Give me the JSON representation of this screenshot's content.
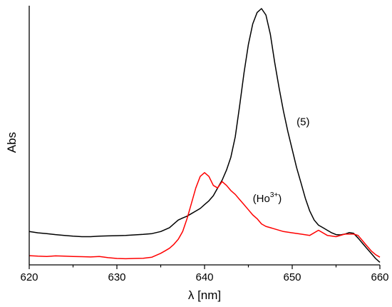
{
  "chart_data": {
    "type": "line",
    "title": "",
    "xlabel": "λ [nm]",
    "ylabel": "Abs",
    "xlim": [
      620,
      660
    ],
    "ylim": [
      0,
      1
    ],
    "xticks": [
      620,
      630,
      640,
      650,
      660
    ],
    "grid": false,
    "legend": "none",
    "annotations": [
      {
        "id": "label-5",
        "text": "(5)",
        "x": 650.5,
        "y": 0.545
      },
      {
        "id": "label-ho",
        "base": "(Ho",
        "sup": "3+",
        "close": ")",
        "x": 645.5,
        "y": 0.245
      }
    ],
    "series": [
      {
        "color": "#000000",
        "x": [
          620,
          621,
          622,
          623,
          624,
          625,
          626,
          627,
          628,
          629,
          630,
          631,
          632,
          633,
          634,
          635,
          636,
          636.5,
          637,
          637.5,
          638,
          638.5,
          639,
          639.5,
          640,
          640.5,
          641,
          641.5,
          642,
          642.5,
          643,
          643.5,
          644,
          644.5,
          645,
          645.5,
          646,
          646.5,
          647,
          647.5,
          648,
          648.5,
          649,
          649.5,
          650,
          650.5,
          651,
          651.5,
          652,
          652.5,
          653,
          653.5,
          654,
          654.5,
          655,
          655.5,
          656,
          656.5,
          657,
          657.5,
          658,
          658.5,
          659,
          659.5,
          660
        ],
        "y": [
          0.13,
          0.125,
          0.122,
          0.118,
          0.115,
          0.112,
          0.11,
          0.11,
          0.112,
          0.113,
          0.114,
          0.115,
          0.117,
          0.119,
          0.122,
          0.13,
          0.145,
          0.16,
          0.175,
          0.183,
          0.19,
          0.2,
          0.21,
          0.22,
          0.235,
          0.25,
          0.27,
          0.3,
          0.33,
          0.37,
          0.42,
          0.5,
          0.62,
          0.75,
          0.86,
          0.94,
          0.985,
          1.0,
          0.975,
          0.9,
          0.79,
          0.69,
          0.6,
          0.52,
          0.45,
          0.38,
          0.32,
          0.26,
          0.21,
          0.175,
          0.155,
          0.145,
          0.135,
          0.125,
          0.118,
          0.117,
          0.12,
          0.126,
          0.123,
          0.105,
          0.085,
          0.065,
          0.045,
          0.025,
          0.01
        ]
      },
      {
        "color": "#ff0000",
        "x": [
          620,
          621,
          622,
          623,
          624,
          625,
          626,
          627,
          628,
          629,
          630,
          631,
          632,
          633,
          634,
          635,
          635.5,
          636,
          636.5,
          637,
          637.5,
          638,
          638.5,
          639,
          639.5,
          640,
          640.5,
          641,
          641.5,
          642,
          642.5,
          643,
          643.5,
          644,
          644.5,
          645,
          645.5,
          646,
          646.5,
          647,
          647.5,
          648,
          649,
          650,
          651,
          652,
          653,
          654,
          655,
          656,
          657,
          657.5,
          658,
          658.5,
          659,
          659.5,
          660
        ],
        "y": [
          0.036,
          0.034,
          0.033,
          0.035,
          0.034,
          0.033,
          0.032,
          0.031,
          0.033,
          0.028,
          0.025,
          0.024,
          0.025,
          0.026,
          0.03,
          0.045,
          0.055,
          0.065,
          0.08,
          0.1,
          0.13,
          0.18,
          0.24,
          0.3,
          0.345,
          0.36,
          0.345,
          0.31,
          0.3,
          0.325,
          0.31,
          0.29,
          0.275,
          0.255,
          0.235,
          0.215,
          0.195,
          0.18,
          0.16,
          0.15,
          0.145,
          0.14,
          0.13,
          0.125,
          0.12,
          0.115,
          0.135,
          0.115,
          0.11,
          0.12,
          0.12,
          0.115,
          0.095,
          0.075,
          0.055,
          0.04,
          0.03
        ]
      }
    ]
  }
}
